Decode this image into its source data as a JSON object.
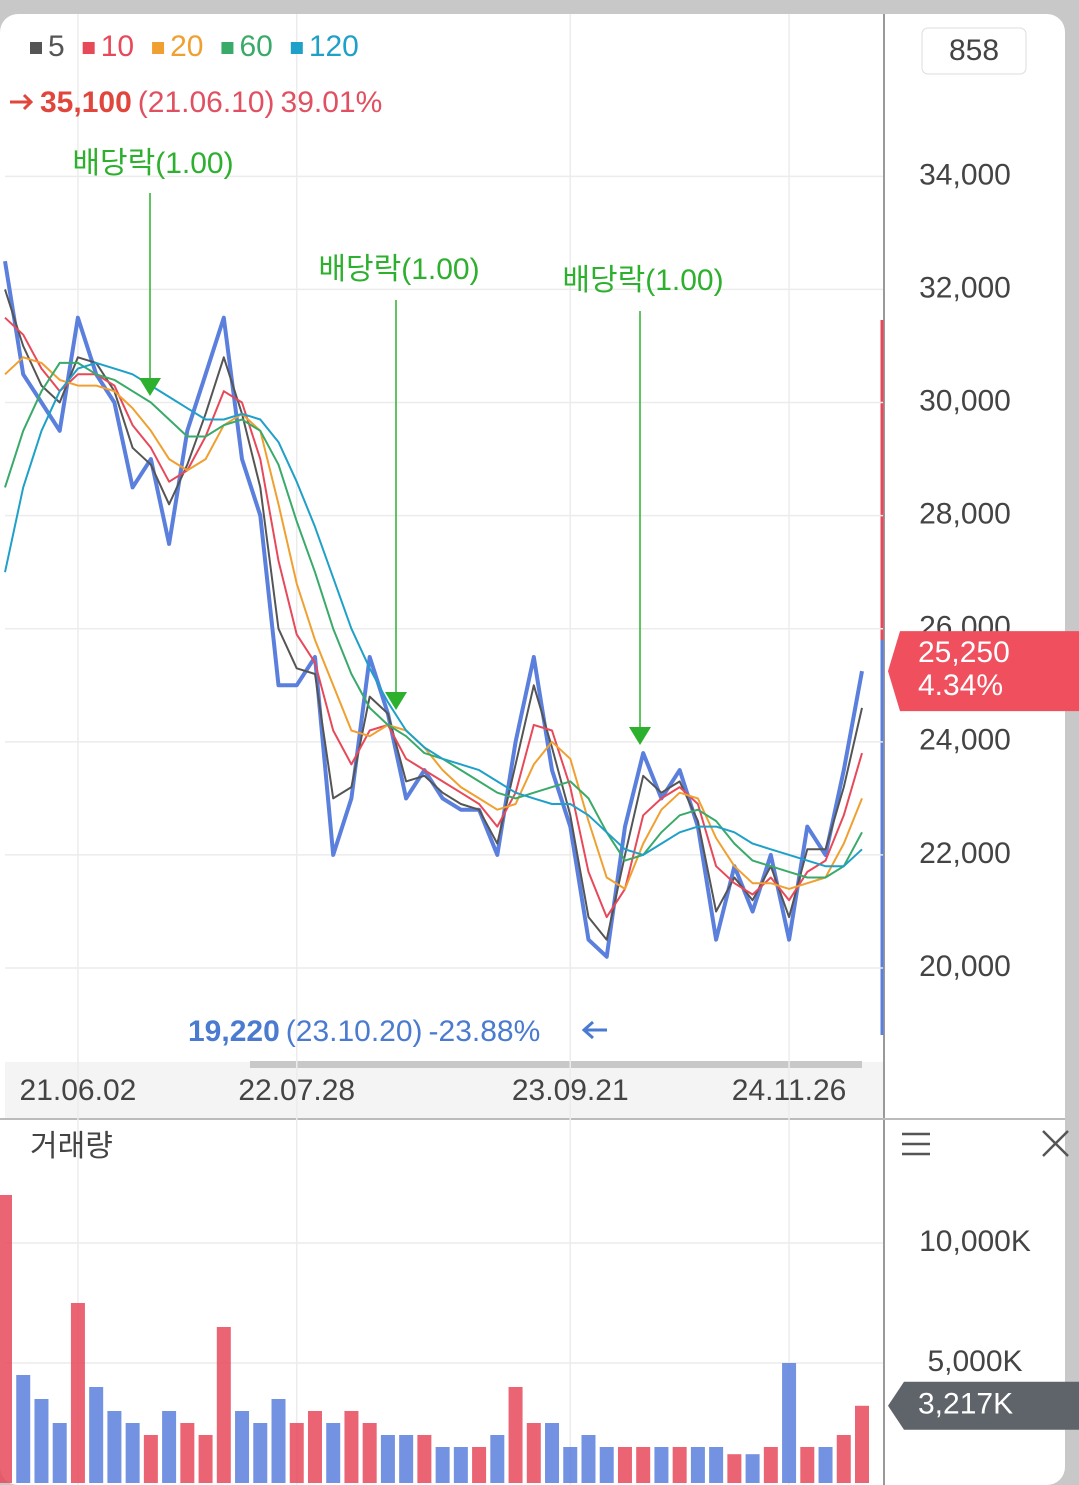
{
  "chart_data": {
    "type": "line",
    "top_box": "858",
    "categories": [
      null,
      null,
      null,
      null,
      "21.06.02",
      null,
      null,
      null,
      null,
      null,
      null,
      null,
      null,
      null,
      null,
      null,
      "22.07.28",
      null,
      null,
      null,
      null,
      null,
      null,
      null,
      null,
      null,
      null,
      null,
      null,
      null,
      null,
      "23.09.21",
      null,
      null,
      null,
      null,
      null,
      null,
      null,
      null,
      null,
      null,
      null,
      "24.11.26",
      null,
      null,
      null,
      null
    ],
    "price": {
      "color": "#5b7fdc",
      "values": [
        32500,
        30500,
        30000,
        29500,
        31500,
        30500,
        30000,
        28500,
        29000,
        27500,
        29500,
        30500,
        31500,
        29000,
        28000,
        25000,
        25000,
        25500,
        22000,
        23000,
        25500,
        24500,
        23000,
        23500,
        23000,
        22800,
        22800,
        22000,
        24000,
        25500,
        23500,
        22500,
        20500,
        20200,
        22500,
        23800,
        23000,
        23500,
        22500,
        20500,
        21800,
        21000,
        22000,
        20500,
        22500,
        22000,
        23500,
        25250
      ]
    },
    "series": [
      {
        "name": "5",
        "color": "#555555",
        "values": [
          32000,
          31000,
          30300,
          30000,
          30800,
          30700,
          30200,
          29200,
          28900,
          28200,
          28900,
          29800,
          30800,
          29800,
          28500,
          26000,
          25300,
          25200,
          23000,
          23200,
          24800,
          24500,
          23300,
          23400,
          23100,
          22900,
          22800,
          22200,
          23600,
          25000,
          23900,
          22700,
          20900,
          20500,
          22000,
          23400,
          23100,
          23300,
          22600,
          21000,
          21600,
          21200,
          21800,
          20900,
          22100,
          22100,
          23200,
          24600
        ]
      },
      {
        "name": "10",
        "color": "#e8495a",
        "values": [
          31500,
          31200,
          30600,
          30200,
          30500,
          30500,
          30300,
          29600,
          29200,
          28600,
          28800,
          29400,
          30200,
          30000,
          29000,
          27200,
          25900,
          25400,
          24200,
          23600,
          24200,
          24300,
          23700,
          23500,
          23300,
          23100,
          22900,
          22500,
          23100,
          24300,
          24200,
          23200,
          21700,
          20900,
          21400,
          22700,
          23000,
          23200,
          22900,
          21800,
          21500,
          21300,
          21600,
          21200,
          21700,
          21900,
          22700,
          23800
        ]
      },
      {
        "name": "20",
        "color": "#f0a030",
        "values": [
          30500,
          30800,
          30700,
          30400,
          30300,
          30300,
          30200,
          29900,
          29500,
          29000,
          28800,
          29000,
          29600,
          29800,
          29500,
          28200,
          26800,
          25800,
          25000,
          24200,
          24100,
          24300,
          24200,
          23900,
          23500,
          23200,
          23000,
          22800,
          22900,
          23600,
          24000,
          23700,
          22600,
          21600,
          21400,
          22200,
          22800,
          23100,
          23000,
          22300,
          21800,
          21500,
          21500,
          21400,
          21500,
          21600,
          22200,
          23000
        ]
      },
      {
        "name": "60",
        "color": "#3aaa6a",
        "values": [
          28500,
          29500,
          30200,
          30700,
          30700,
          30500,
          30400,
          30200,
          30000,
          29700,
          29400,
          29400,
          29600,
          29700,
          29500,
          28900,
          27900,
          27000,
          26000,
          25200,
          24600,
          24300,
          24100,
          23800,
          23700,
          23500,
          23300,
          23100,
          23000,
          23100,
          23200,
          23300,
          23000,
          22400,
          21900,
          22000,
          22400,
          22700,
          22800,
          22600,
          22200,
          21900,
          21800,
          21700,
          21600,
          21600,
          21800,
          22400
        ]
      },
      {
        "name": "120",
        "color": "#1fa0c8",
        "values": [
          27000,
          28500,
          29500,
          30200,
          30600,
          30700,
          30600,
          30500,
          30300,
          30100,
          29900,
          29700,
          29700,
          29800,
          29700,
          29300,
          28600,
          27800,
          26900,
          26000,
          25300,
          24700,
          24200,
          23900,
          23700,
          23600,
          23500,
          23300,
          23100,
          23000,
          22900,
          22900,
          22700,
          22400,
          22100,
          22000,
          22200,
          22400,
          22500,
          22500,
          22400,
          22200,
          22100,
          22000,
          21900,
          21800,
          21800,
          22100
        ]
      }
    ],
    "ylim": [
      18400,
      36800
    ],
    "yticks": [
      {
        "value": 20000,
        "label": "20,000"
      },
      {
        "value": 22000,
        "label": "22,000"
      },
      {
        "value": 24000,
        "label": "24,000"
      },
      {
        "value": 26000,
        "label": "26,000"
      },
      {
        "value": 28000,
        "label": "28,000"
      },
      {
        "value": 30000,
        "label": "30,000"
      },
      {
        "value": 32000,
        "label": "32,000"
      },
      {
        "value": 34000,
        "label": "34,000"
      }
    ],
    "grid": true,
    "last_price": {
      "value": 25250,
      "label": "25,250"
    },
    "last_change": "4.34%",
    "high": {
      "price": "35,100",
      "date": "(21.06.10)",
      "change": "39.01%"
    },
    "low": {
      "price": "19,220",
      "date": "(23.10.20)",
      "change": "-23.88%"
    },
    "dividends": [
      "배당락(1.00)",
      "배당락(1.00)",
      "배당락(1.00)"
    ],
    "volume": {
      "title": "거래량",
      "values": [
        12000,
        4500,
        3500,
        2500,
        7500,
        4000,
        3000,
        2500,
        2000,
        3000,
        2500,
        2000,
        6500,
        3000,
        2500,
        3500,
        2500,
        3000,
        2500,
        3000,
        2500,
        2000,
        2000,
        2000,
        1500,
        1500,
        1500,
        2000,
        4000,
        2500,
        2500,
        1500,
        2000,
        1500,
        1500,
        1500,
        1500,
        1500,
        1500,
        1500,
        1200,
        1200,
        1500,
        5000,
        1500,
        1500,
        2000,
        3217
      ],
      "ylim": [
        0,
        15000
      ],
      "yticks": [
        {
          "value": 5000,
          "label": "5,000K"
        },
        {
          "value": 10000,
          "label": "10,000K"
        }
      ],
      "last": {
        "value": 3217,
        "label": "3,217K"
      }
    }
  }
}
